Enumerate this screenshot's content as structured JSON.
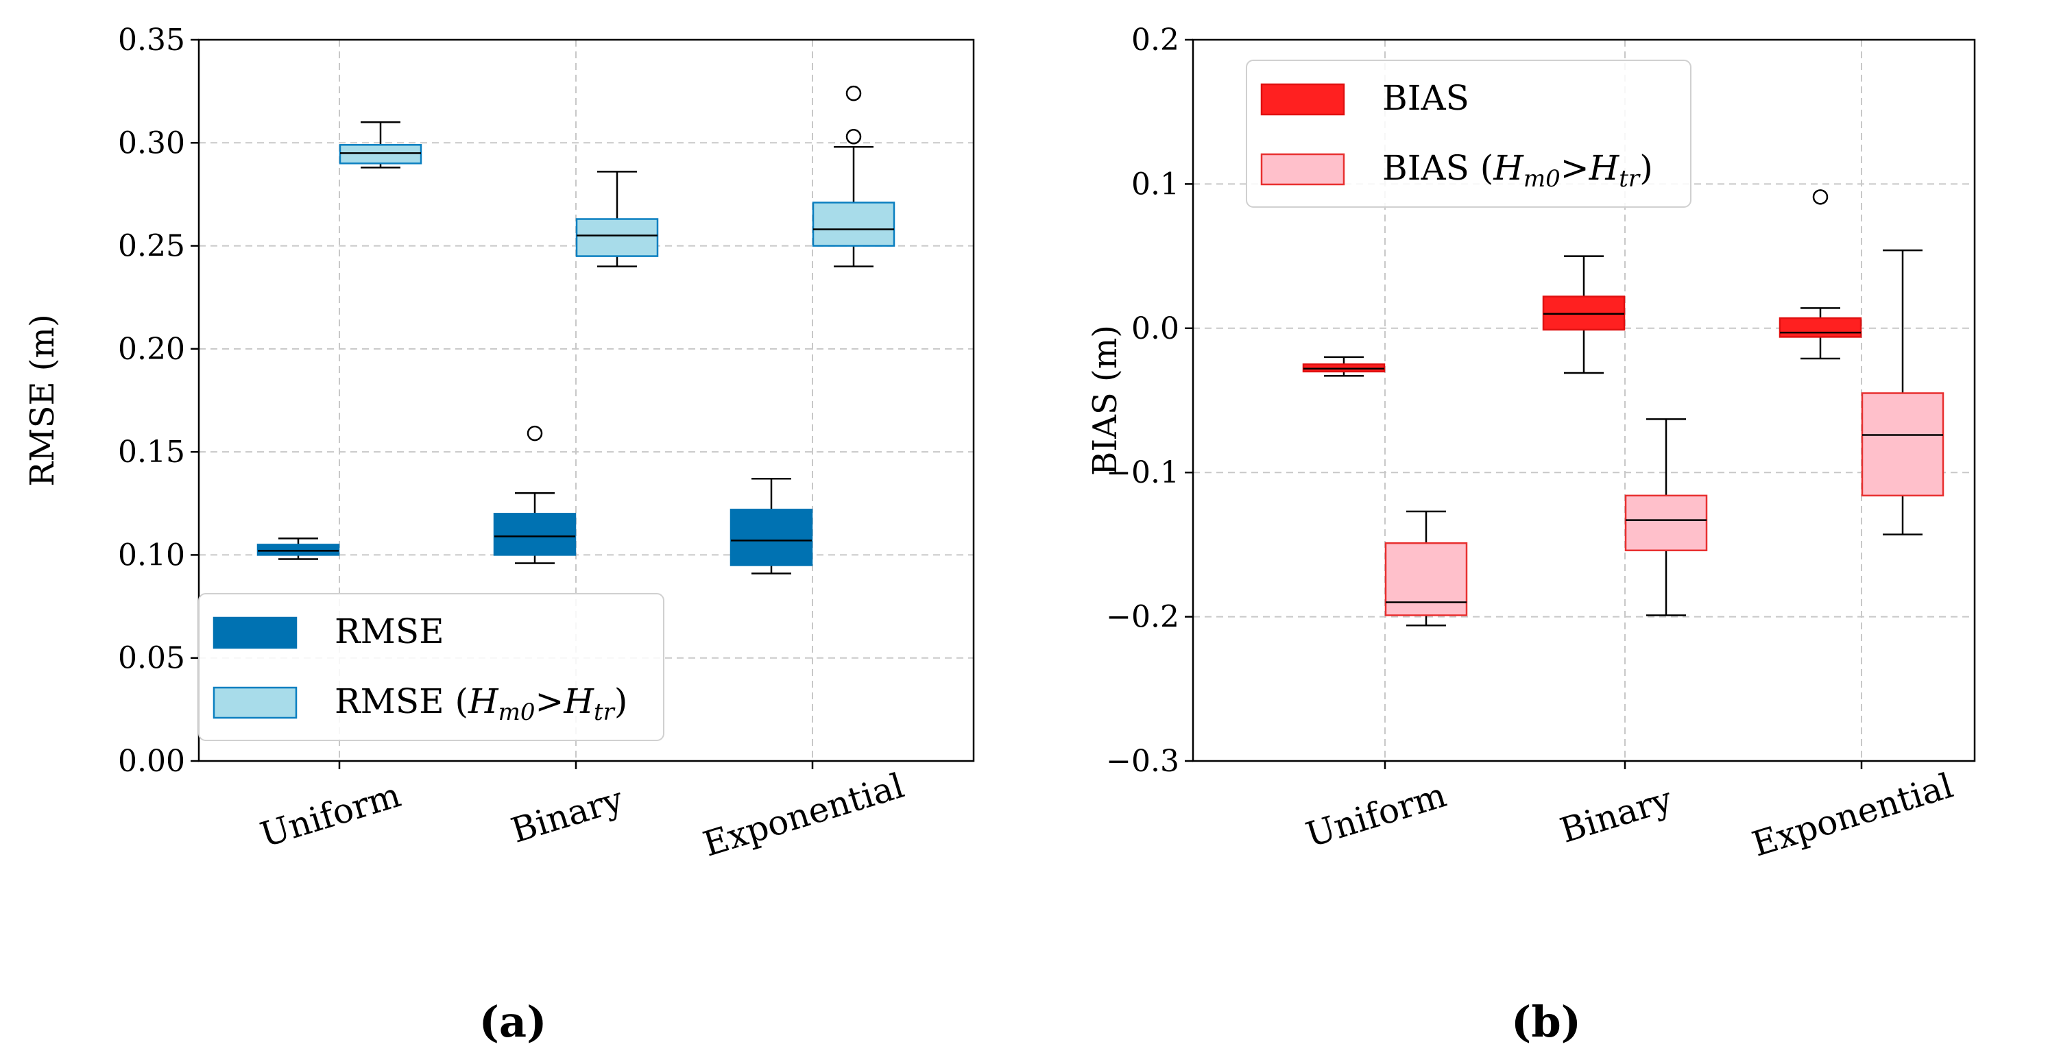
{
  "chart_data": [
    {
      "type": "box",
      "title": "",
      "ylabel": "RMSE (m)",
      "xlabel": "",
      "ylim": [
        0,
        0.35
      ],
      "yticks": [
        "0.00",
        "0.05",
        "0.10",
        "0.15",
        "0.20",
        "0.25",
        "0.30",
        "0.35"
      ],
      "ytick_values": [
        0,
        0.05,
        0.1,
        0.15,
        0.2,
        0.25,
        0.3,
        0.35
      ],
      "categories": [
        "Uniform",
        "Binary",
        "Exponential"
      ],
      "grid": true,
      "legend_position": "lower-left",
      "caption": "(a)",
      "series": [
        {
          "name": "RMSE",
          "legend_label": "RMSE",
          "fill": "#0072b2",
          "edge": "#0072b2",
          "boxes": [
            {
              "whisker_low": 0.098,
              "q1": 0.1,
              "median": 0.102,
              "q3": 0.105,
              "whisker_high": 0.108,
              "outliers": []
            },
            {
              "whisker_low": 0.096,
              "q1": 0.1,
              "median": 0.109,
              "q3": 0.12,
              "whisker_high": 0.13,
              "outliers": [
                0.159
              ]
            },
            {
              "whisker_low": 0.091,
              "q1": 0.095,
              "median": 0.107,
              "q3": 0.122,
              "whisker_high": 0.137,
              "outliers": []
            }
          ]
        },
        {
          "name": "RMSE (Hm0>Htr)",
          "legend_label": "RMSE (",
          "legend_H": "H",
          "legend_Hsub": "m0",
          "legend_gt": ">",
          "legend_H2": "H",
          "legend_H2sub": "tr",
          "legend_close": ")",
          "fill": "#a8dcea",
          "edge": "#0a7fc0",
          "boxes": [
            {
              "whisker_low": 0.288,
              "q1": 0.29,
              "median": 0.295,
              "q3": 0.299,
              "whisker_high": 0.31,
              "outliers": []
            },
            {
              "whisker_low": 0.24,
              "q1": 0.245,
              "median": 0.255,
              "q3": 0.263,
              "whisker_high": 0.286,
              "outliers": []
            },
            {
              "whisker_low": 0.24,
              "q1": 0.25,
              "median": 0.258,
              "q3": 0.271,
              "whisker_high": 0.298,
              "outliers": [
                0.303,
                0.324
              ]
            }
          ]
        }
      ]
    },
    {
      "type": "box",
      "title": "",
      "ylabel": "BIAS (m)",
      "xlabel": "",
      "ylim": [
        -0.3,
        0.2
      ],
      "yticks": [
        "−0.3",
        "−0.2",
        "−0.1",
        "0.0",
        "0.1",
        "0.2"
      ],
      "ytick_values": [
        -0.3,
        -0.2,
        -0.1,
        0.0,
        0.1,
        0.2
      ],
      "categories": [
        "Uniform",
        "Binary",
        "Exponential"
      ],
      "grid": true,
      "legend_position": "top-left",
      "caption": "(b)",
      "series": [
        {
          "name": "BIAS",
          "legend_label": "BIAS",
          "fill": "#ff2020",
          "edge": "#e01010",
          "boxes": [
            {
              "whisker_low": -0.033,
              "q1": -0.03,
              "median": -0.028,
              "q3": -0.025,
              "whisker_high": -0.02,
              "outliers": []
            },
            {
              "whisker_low": -0.031,
              "q1": -0.001,
              "median": 0.01,
              "q3": 0.022,
              "whisker_high": 0.05,
              "outliers": []
            },
            {
              "whisker_low": -0.021,
              "q1": -0.006,
              "median": -0.003,
              "q3": 0.007,
              "whisker_high": 0.014,
              "outliers": [
                0.091
              ]
            }
          ]
        },
        {
          "name": "BIAS (Hm0>Htr)",
          "legend_label": "BIAS (",
          "legend_H": "H",
          "legend_Hsub": "m0",
          "legend_gt": ">",
          "legend_H2": "H",
          "legend_H2sub": "tr",
          "legend_close": ")",
          "fill": "#ffc0cb",
          "edge": "#e83030",
          "boxes": [
            {
              "whisker_low": -0.206,
              "q1": -0.199,
              "median": -0.19,
              "q3": -0.149,
              "whisker_high": -0.127,
              "outliers": []
            },
            {
              "whisker_low": -0.199,
              "q1": -0.154,
              "median": -0.133,
              "q3": -0.116,
              "whisker_high": -0.063,
              "outliers": []
            },
            {
              "whisker_low": -0.143,
              "q1": -0.116,
              "median": -0.074,
              "q3": -0.045,
              "whisker_high": 0.054,
              "outliers": []
            }
          ]
        }
      ]
    }
  ]
}
